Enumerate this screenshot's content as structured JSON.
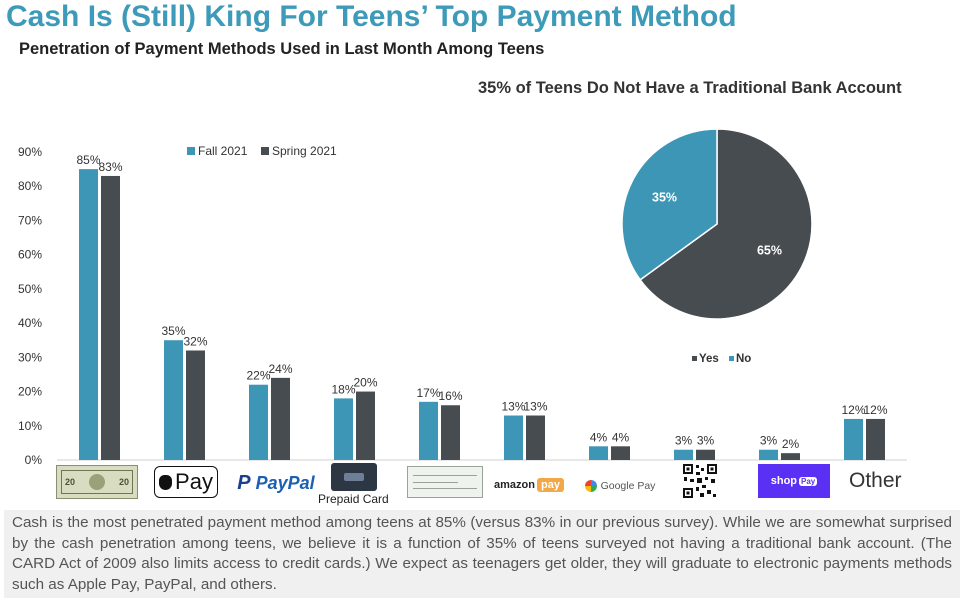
{
  "header": {
    "title": "Cash Is (Still) King For Teens’ Top Payment Method",
    "subtitle": "Penetration of Payment Methods Used in Last Month Among Teens"
  },
  "colors": {
    "fall": "#3d96b6",
    "spring": "#474c51",
    "title": "#3d9ab8"
  },
  "chart_data": [
    {
      "type": "bar",
      "title": "",
      "categories": [
        "Cash",
        "Apple Pay",
        "PayPal",
        "Prepaid Card",
        "Check",
        "Amazon Pay",
        "Google Pay",
        "QR Code",
        "Shop Pay",
        "Other"
      ],
      "series": [
        {
          "name": "Fall 2021",
          "values": [
            85,
            35,
            22,
            18,
            17,
            13,
            4,
            3,
            3,
            12
          ]
        },
        {
          "name": "Spring 2021",
          "values": [
            83,
            32,
            24,
            20,
            16,
            13,
            4,
            3,
            2,
            12
          ]
        }
      ],
      "ylim": [
        0,
        90
      ],
      "yticks": [
        "0%",
        "10%",
        "20%",
        "30%",
        "40%",
        "50%",
        "60%",
        "70%",
        "80%",
        "90%"
      ],
      "legend": "top",
      "grid": false
    },
    {
      "type": "pie",
      "title": "35% of Teens Do Not Have a Traditional Bank Account",
      "slices": [
        {
          "name": "Yes",
          "value": 65,
          "label": "65%"
        },
        {
          "name": "No",
          "value": 35,
          "label": "35%"
        }
      ],
      "legend": "bottom"
    }
  ],
  "logos": {
    "apple_pay": "Pay",
    "paypal": "PayPal",
    "prepaid": "Prepaid Card",
    "amazon": "amazon",
    "amazon_pay": "pay",
    "google_pay": "Google Pay",
    "shop_pay": "shop",
    "shop_pay_badge": "Pay",
    "other": "Other"
  },
  "summary": "Cash is the most penetrated payment method among teens at 85% (versus 83% in our previous survey). While we are somewhat surprised by the cash penetration among teens, we believe it is a function of 35% of teens surveyed not having a traditional bank account. (The CARD Act of 2009 also limits access to credit cards.) We expect as teenagers get older, they will graduate to electronic payments methods such as Apple Pay, PayPal, and others."
}
